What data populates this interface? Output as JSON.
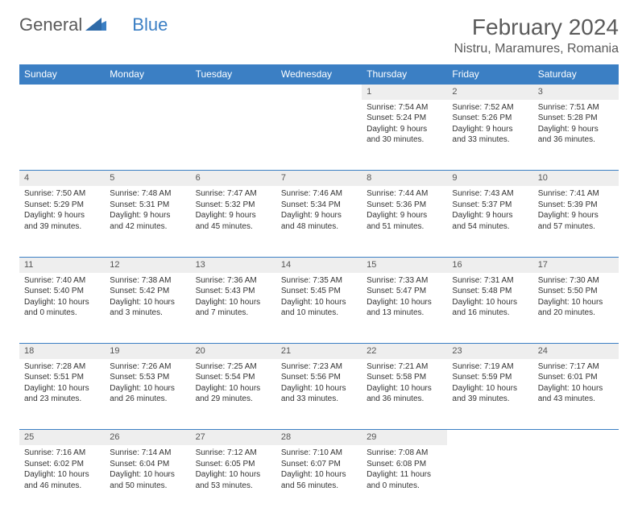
{
  "brand": {
    "name1": "General",
    "name2": "Blue"
  },
  "title": "February 2024",
  "location": "Nistru, Maramures, Romania",
  "colors": {
    "accent": "#3b7fc4",
    "header_text": "#ffffff",
    "daynum_bg": "#eeeeee",
    "text": "#333333"
  },
  "weekdays": [
    "Sunday",
    "Monday",
    "Tuesday",
    "Wednesday",
    "Thursday",
    "Friday",
    "Saturday"
  ],
  "weeks": [
    [
      null,
      null,
      null,
      null,
      {
        "d": "1",
        "sr": "7:54 AM",
        "ss": "5:24 PM",
        "dl": "9 hours and 30 minutes."
      },
      {
        "d": "2",
        "sr": "7:52 AM",
        "ss": "5:26 PM",
        "dl": "9 hours and 33 minutes."
      },
      {
        "d": "3",
        "sr": "7:51 AM",
        "ss": "5:28 PM",
        "dl": "9 hours and 36 minutes."
      }
    ],
    [
      {
        "d": "4",
        "sr": "7:50 AM",
        "ss": "5:29 PM",
        "dl": "9 hours and 39 minutes."
      },
      {
        "d": "5",
        "sr": "7:48 AM",
        "ss": "5:31 PM",
        "dl": "9 hours and 42 minutes."
      },
      {
        "d": "6",
        "sr": "7:47 AM",
        "ss": "5:32 PM",
        "dl": "9 hours and 45 minutes."
      },
      {
        "d": "7",
        "sr": "7:46 AM",
        "ss": "5:34 PM",
        "dl": "9 hours and 48 minutes."
      },
      {
        "d": "8",
        "sr": "7:44 AM",
        "ss": "5:36 PM",
        "dl": "9 hours and 51 minutes."
      },
      {
        "d": "9",
        "sr": "7:43 AM",
        "ss": "5:37 PM",
        "dl": "9 hours and 54 minutes."
      },
      {
        "d": "10",
        "sr": "7:41 AM",
        "ss": "5:39 PM",
        "dl": "9 hours and 57 minutes."
      }
    ],
    [
      {
        "d": "11",
        "sr": "7:40 AM",
        "ss": "5:40 PM",
        "dl": "10 hours and 0 minutes."
      },
      {
        "d": "12",
        "sr": "7:38 AM",
        "ss": "5:42 PM",
        "dl": "10 hours and 3 minutes."
      },
      {
        "d": "13",
        "sr": "7:36 AM",
        "ss": "5:43 PM",
        "dl": "10 hours and 7 minutes."
      },
      {
        "d": "14",
        "sr": "7:35 AM",
        "ss": "5:45 PM",
        "dl": "10 hours and 10 minutes."
      },
      {
        "d": "15",
        "sr": "7:33 AM",
        "ss": "5:47 PM",
        "dl": "10 hours and 13 minutes."
      },
      {
        "d": "16",
        "sr": "7:31 AM",
        "ss": "5:48 PM",
        "dl": "10 hours and 16 minutes."
      },
      {
        "d": "17",
        "sr": "7:30 AM",
        "ss": "5:50 PM",
        "dl": "10 hours and 20 minutes."
      }
    ],
    [
      {
        "d": "18",
        "sr": "7:28 AM",
        "ss": "5:51 PM",
        "dl": "10 hours and 23 minutes."
      },
      {
        "d": "19",
        "sr": "7:26 AM",
        "ss": "5:53 PM",
        "dl": "10 hours and 26 minutes."
      },
      {
        "d": "20",
        "sr": "7:25 AM",
        "ss": "5:54 PM",
        "dl": "10 hours and 29 minutes."
      },
      {
        "d": "21",
        "sr": "7:23 AM",
        "ss": "5:56 PM",
        "dl": "10 hours and 33 minutes."
      },
      {
        "d": "22",
        "sr": "7:21 AM",
        "ss": "5:58 PM",
        "dl": "10 hours and 36 minutes."
      },
      {
        "d": "23",
        "sr": "7:19 AM",
        "ss": "5:59 PM",
        "dl": "10 hours and 39 minutes."
      },
      {
        "d": "24",
        "sr": "7:17 AM",
        "ss": "6:01 PM",
        "dl": "10 hours and 43 minutes."
      }
    ],
    [
      {
        "d": "25",
        "sr": "7:16 AM",
        "ss": "6:02 PM",
        "dl": "10 hours and 46 minutes."
      },
      {
        "d": "26",
        "sr": "7:14 AM",
        "ss": "6:04 PM",
        "dl": "10 hours and 50 minutes."
      },
      {
        "d": "27",
        "sr": "7:12 AM",
        "ss": "6:05 PM",
        "dl": "10 hours and 53 minutes."
      },
      {
        "d": "28",
        "sr": "7:10 AM",
        "ss": "6:07 PM",
        "dl": "10 hours and 56 minutes."
      },
      {
        "d": "29",
        "sr": "7:08 AM",
        "ss": "6:08 PM",
        "dl": "11 hours and 0 minutes."
      },
      null,
      null
    ]
  ],
  "labels": {
    "sunrise": "Sunrise: ",
    "sunset": "Sunset: ",
    "daylight": "Daylight: "
  }
}
